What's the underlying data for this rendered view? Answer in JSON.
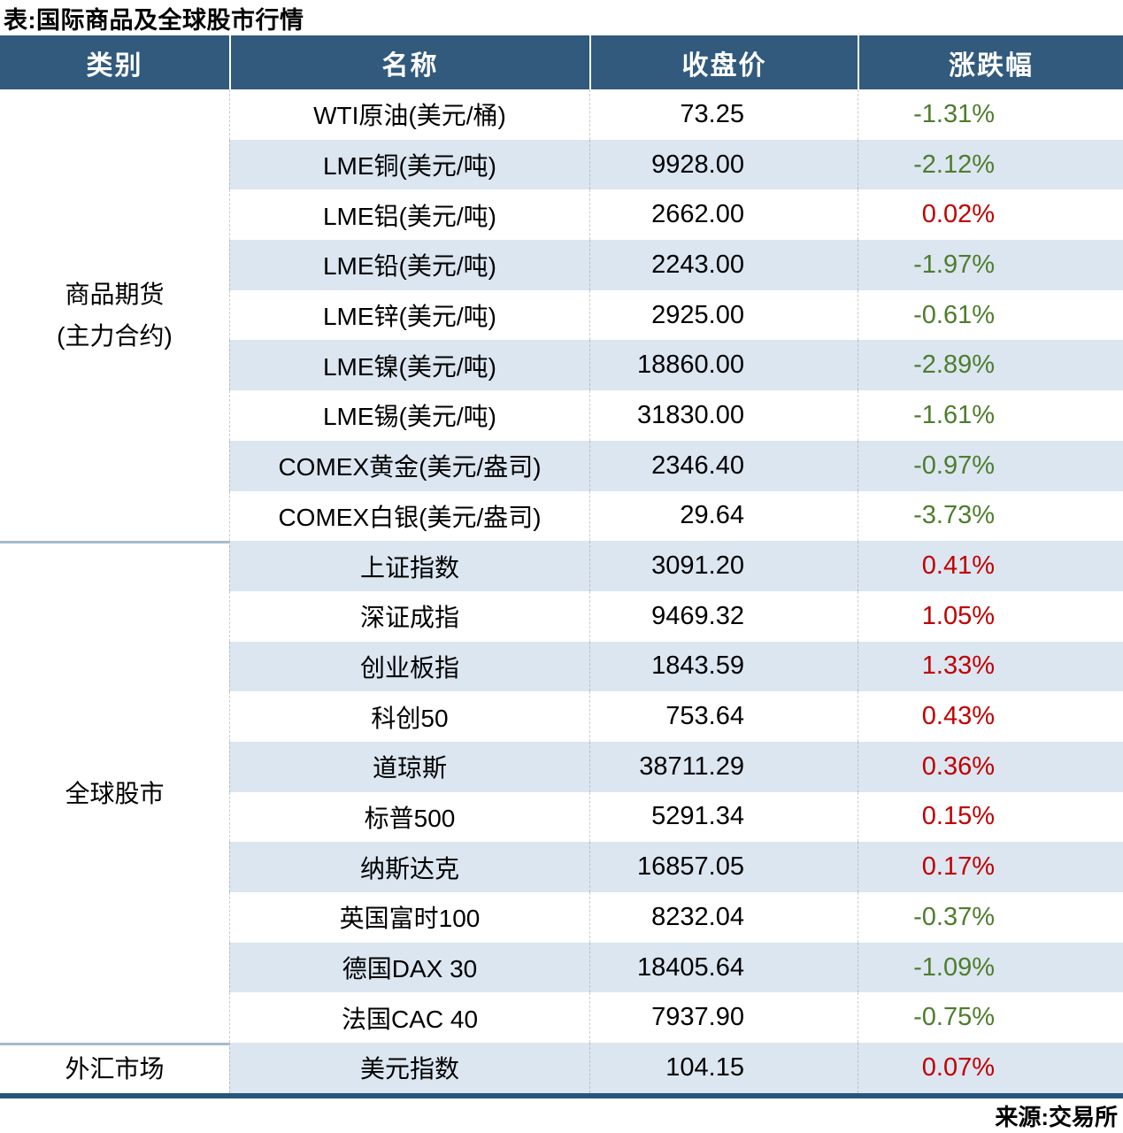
{
  "colors": {
    "header_bg": "#315A7D",
    "stripe": "#DCE6F1",
    "up": "#C00000",
    "down": "#4E7D2D",
    "bottom_border": "#27567B",
    "section_divider": "#A6BACD"
  },
  "chart_data": {
    "type": "table",
    "title": "表:国际商品及全球股市行情",
    "source": "来源:交易所",
    "columns": [
      "类别",
      "名称",
      "收盘价",
      "涨跌幅"
    ],
    "sections": [
      {
        "category_lines": [
          "商品期货",
          "(主力合约)"
        ],
        "rows": [
          {
            "name": "WTI原油(美元/桶)",
            "close": "73.25",
            "change": "-1.31%"
          },
          {
            "name": "LME铜(美元/吨)",
            "close": "9928.00",
            "change": "-2.12%"
          },
          {
            "name": "LME铝(美元/吨)",
            "close": "2662.00",
            "change": "0.02%"
          },
          {
            "name": "LME铅(美元/吨)",
            "close": "2243.00",
            "change": "-1.97%"
          },
          {
            "name": "LME锌(美元/吨)",
            "close": "2925.00",
            "change": "-0.61%"
          },
          {
            "name": "LME镍(美元/吨)",
            "close": "18860.00",
            "change": "-2.89%"
          },
          {
            "name": "LME锡(美元/吨)",
            "close": "31830.00",
            "change": "-1.61%"
          },
          {
            "name": "COMEX黄金(美元/盎司)",
            "close": "2346.40",
            "change": "-0.97%"
          },
          {
            "name": "COMEX白银(美元/盎司)",
            "close": "29.64",
            "change": "-3.73%"
          }
        ]
      },
      {
        "category_lines": [
          "全球股市"
        ],
        "rows": [
          {
            "name": "上证指数",
            "close": "3091.20",
            "change": "0.41%"
          },
          {
            "name": "深证成指",
            "close": "9469.32",
            "change": "1.05%"
          },
          {
            "name": "创业板指",
            "close": "1843.59",
            "change": "1.33%"
          },
          {
            "name": "科创50",
            "close": "753.64",
            "change": "0.43%"
          },
          {
            "name": "道琼斯",
            "close": "38711.29",
            "change": "0.36%"
          },
          {
            "name": "标普500",
            "close": "5291.34",
            "change": "0.15%"
          },
          {
            "name": "纳斯达克",
            "close": "16857.05",
            "change": "0.17%"
          },
          {
            "name": "英国富时100",
            "close": "8232.04",
            "change": "-0.37%"
          },
          {
            "name": "德国DAX 30",
            "close": "18405.64",
            "change": "-1.09%"
          },
          {
            "name": "法国CAC 40",
            "close": "7937.90",
            "change": "-0.75%"
          }
        ]
      },
      {
        "category_lines": [
          "外汇市场"
        ],
        "rows": [
          {
            "name": "美元指数",
            "close": "104.15",
            "change": "0.07%"
          }
        ]
      }
    ]
  }
}
